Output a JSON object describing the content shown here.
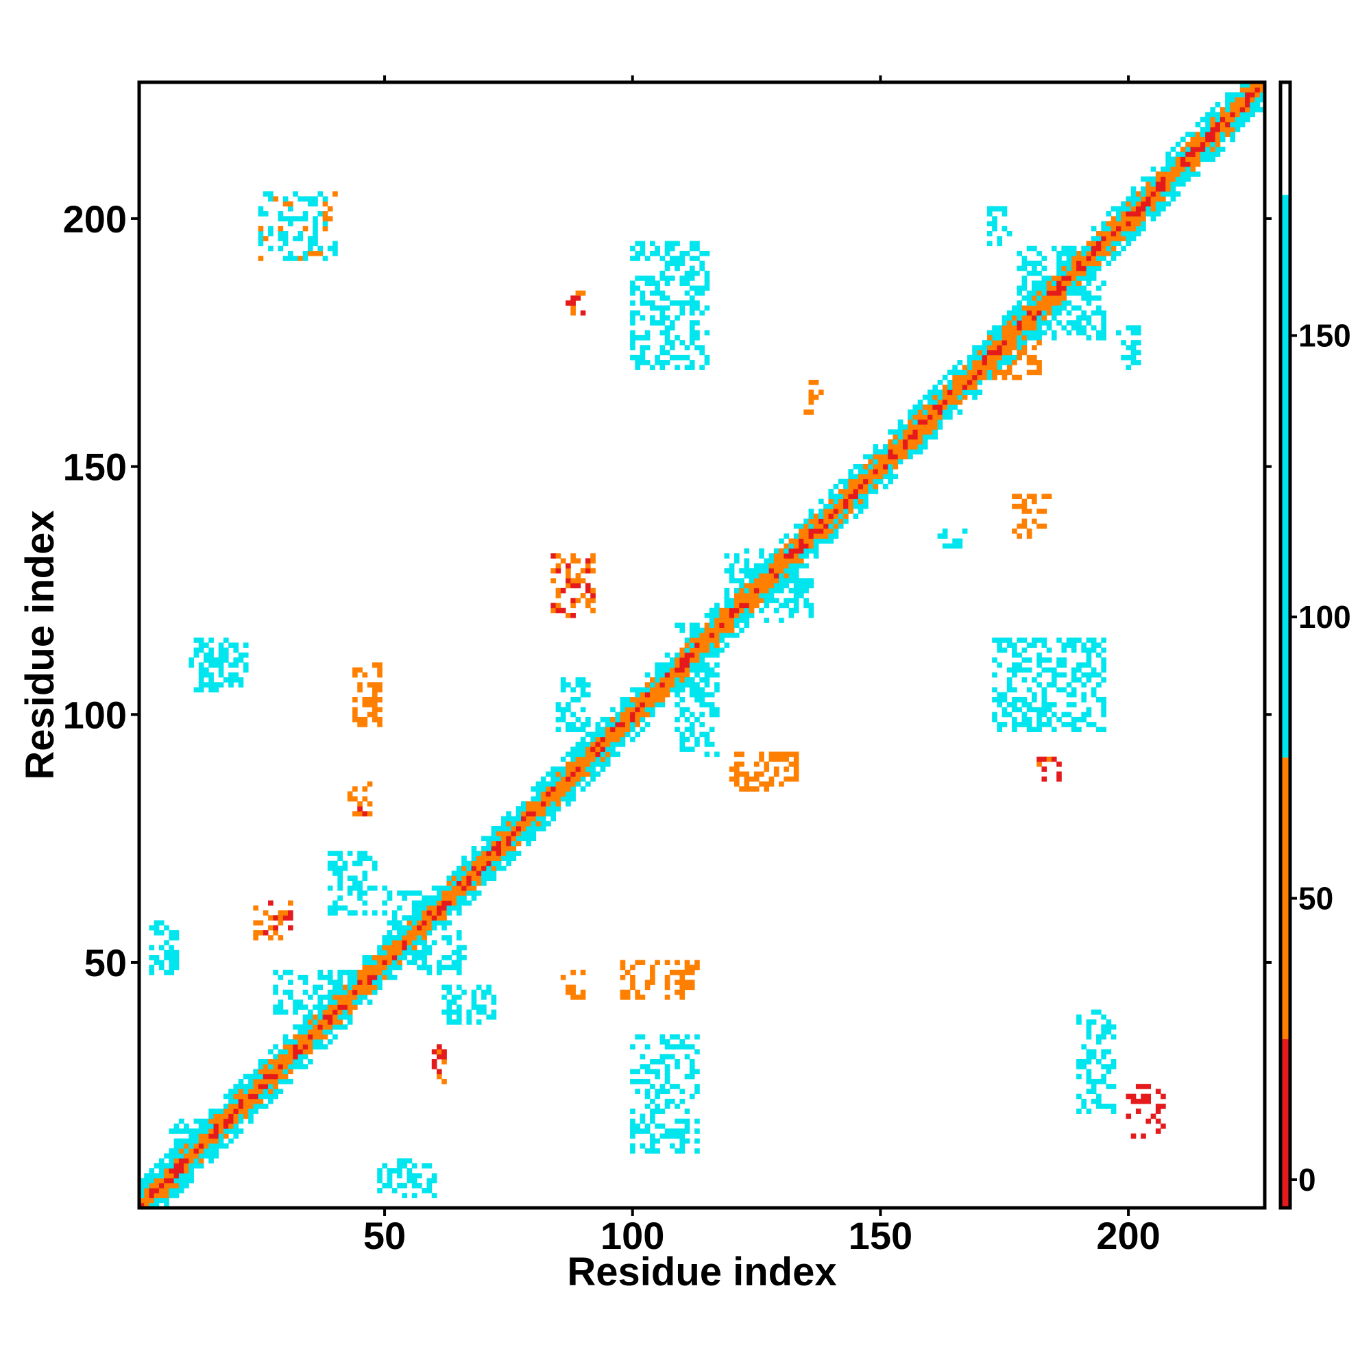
{
  "chart_data": {
    "type": "heatmap",
    "title": "",
    "xlabel": "Residue index",
    "ylabel": "Residue index",
    "xlim": [
      1,
      227
    ],
    "ylim": [
      1,
      227
    ],
    "x_ticks": [
      50,
      100,
      150,
      200
    ],
    "y_ticks": [
      50,
      100,
      150,
      200
    ],
    "legend_placement": "right",
    "colorbar": {
      "ticks": [
        0,
        50,
        100,
        150
      ],
      "range": [
        -5,
        195
      ],
      "segments": [
        {
          "from": -5,
          "to": 25,
          "color": "#e41a1c"
        },
        {
          "from": 25,
          "to": 75,
          "color": "#ff7f00"
        },
        {
          "from": 75,
          "to": 175,
          "color": "#00e5ee"
        },
        {
          "from": 175,
          "to": 195,
          "color": "#ffffff"
        }
      ]
    },
    "diagonal_band": {
      "from": 1,
      "to": 227,
      "half_width": 5
    },
    "clusters": [
      {
        "x": [
          3,
          8
        ],
        "y": [
          48,
          58
        ],
        "value": 100
      },
      {
        "x": [
          24,
          31
        ],
        "y": [
          55,
          62
        ],
        "value": 30
      },
      {
        "x": [
          39,
          48
        ],
        "y": [
          60,
          72
        ],
        "value": 150
      },
      {
        "x": [
          50,
          58
        ],
        "y": [
          55,
          65
        ],
        "value": 150
      },
      {
        "x": [
          56,
          66
        ],
        "y": [
          48,
          56
        ],
        "value": 150
      },
      {
        "x": [
          62,
          72
        ],
        "y": [
          38,
          45
        ],
        "value": 150
      },
      {
        "x": [
          44,
          49
        ],
        "y": [
          97,
          110
        ],
        "value": 40
      },
      {
        "x": [
          43,
          47
        ],
        "y": [
          80,
          86
        ],
        "value": 30
      },
      {
        "x": [
          11,
          22
        ],
        "y": [
          105,
          115
        ],
        "value": 100
      },
      {
        "x": [
          25,
          40
        ],
        "y": [
          192,
          205
        ],
        "value": 80
      },
      {
        "x": [
          49,
          60
        ],
        "y": [
          3,
          10
        ],
        "value": 100
      },
      {
        "x": [
          60,
          62
        ],
        "y": [
          26,
          33
        ],
        "value": 20
      },
      {
        "x": [
          86,
          90
        ],
        "y": [
          43,
          48
        ],
        "value": 60
      },
      {
        "x": [
          98,
          113
        ],
        "y": [
          43,
          50
        ],
        "value": 40
      },
      {
        "x": [
          100,
          113
        ],
        "y": [
          12,
          35
        ],
        "value": 100
      },
      {
        "x": [
          84,
          92
        ],
        "y": [
          120,
          132
        ],
        "value": 30
      },
      {
        "x": [
          85,
          91
        ],
        "y": [
          97,
          107
        ],
        "value": 120
      },
      {
        "x": [
          100,
          115
        ],
        "y": [
          170,
          195
        ],
        "value": 100
      },
      {
        "x": [
          87,
          90
        ],
        "y": [
          181,
          185
        ],
        "value": 30
      },
      {
        "x": [
          120,
          133
        ],
        "y": [
          85,
          92
        ],
        "value": 40
      },
      {
        "x": [
          135,
          138
        ],
        "y": [
          161,
          167
        ],
        "value": 60
      },
      {
        "x": [
          162,
          169
        ],
        "y": [
          134,
          137
        ],
        "value": 110
      },
      {
        "x": [
          177,
          184
        ],
        "y": [
          136,
          144
        ],
        "value": 40
      },
      {
        "x": [
          173,
          195
        ],
        "y": [
          97,
          115
        ],
        "value": 100
      },
      {
        "x": [
          182,
          186
        ],
        "y": [
          87,
          91
        ],
        "value": 20
      },
      {
        "x": [
          190,
          197
        ],
        "y": [
          20,
          40
        ],
        "value": 90
      },
      {
        "x": [
          200,
          207
        ],
        "y": [
          15,
          25
        ],
        "value": 10
      },
      {
        "x": [
          172,
          176
        ],
        "y": [
          195,
          202
        ],
        "value": 100
      },
      {
        "x": [
          178,
          195
        ],
        "y": [
          176,
          194
        ],
        "value": 150
      },
      {
        "x": [
          198,
          202
        ],
        "y": [
          170,
          178
        ],
        "value": 100
      },
      {
        "x": [
          127,
          136
        ],
        "y": [
          119,
          127
        ],
        "value": 150
      },
      {
        "x": [
          119,
          126
        ],
        "y": [
          124,
          133
        ],
        "value": 150
      },
      {
        "x": [
          109,
          117
        ],
        "y": [
          92,
          118
        ],
        "value": 130
      },
      {
        "x": [
          28,
          43
        ],
        "y": [
          40,
          48
        ],
        "value": 130
      },
      {
        "x": [
          7,
          17
        ],
        "y": [
          10,
          18
        ],
        "value": 120
      },
      {
        "x": [
          172,
          182
        ],
        "y": [
          168,
          176
        ],
        "value": 60
      }
    ]
  }
}
